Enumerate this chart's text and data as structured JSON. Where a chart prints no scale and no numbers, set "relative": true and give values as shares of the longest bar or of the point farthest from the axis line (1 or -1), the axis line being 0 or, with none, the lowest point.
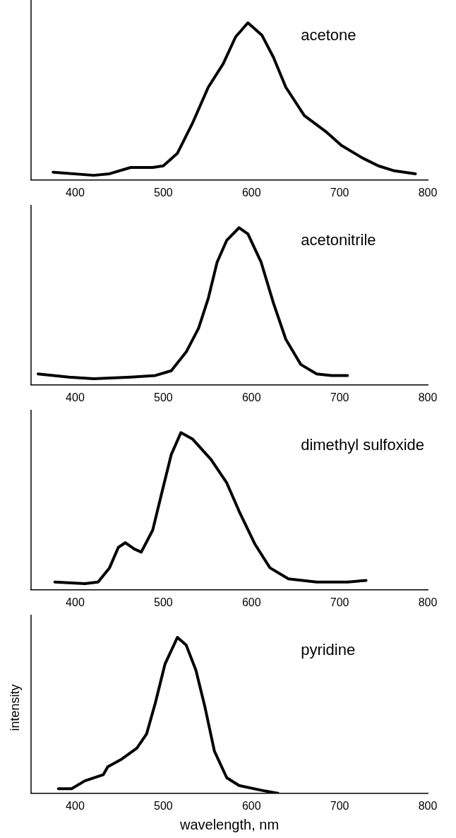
{
  "chart_data": [
    {
      "type": "line",
      "relative": true,
      "xlim": [
        350,
        800
      ],
      "xticks": [
        400,
        500,
        600,
        700,
        800
      ],
      "annotations": [
        "acetone"
      ],
      "marker": "none",
      "tick_labels": "x",
      "grid": false,
      "legend": false,
      "series": [
        {
          "color": "#000000",
          "x": [
            375,
            421,
            439,
            463,
            488,
            500,
            516,
            533,
            551,
            568,
            582,
            596,
            612,
            625,
            639,
            660,
            684,
            702,
            726,
            744,
            761,
            786
          ],
          "values": [
            0.05,
            0.03,
            0.04,
            0.08,
            0.08,
            0.09,
            0.17,
            0.36,
            0.59,
            0.74,
            0.91,
            1.0,
            0.92,
            0.78,
            0.59,
            0.41,
            0.31,
            0.22,
            0.14,
            0.09,
            0.06,
            0.04
          ]
        }
      ]
    },
    {
      "type": "line",
      "relative": true,
      "xlim": [
        350,
        800
      ],
      "xticks": [
        400,
        500,
        600,
        700,
        800
      ],
      "annotations": [
        "acetonitrile"
      ],
      "marker": "none",
      "tick_labels": "x",
      "grid": false,
      "legend": false,
      "series": [
        {
          "color": "#000000",
          "x": [
            358,
            393,
            421,
            463,
            491,
            509,
            526,
            540,
            551,
            561,
            572,
            586,
            596,
            611,
            625,
            639,
            656,
            674,
            691,
            709
          ],
          "values": [
            0.07,
            0.05,
            0.04,
            0.05,
            0.06,
            0.09,
            0.21,
            0.36,
            0.55,
            0.78,
            0.92,
            1.0,
            0.96,
            0.78,
            0.52,
            0.29,
            0.13,
            0.07,
            0.06,
            0.06
          ]
        }
      ]
    },
    {
      "type": "line",
      "relative": true,
      "xlim": [
        350,
        800
      ],
      "xticks": [
        400,
        500,
        600,
        700,
        800
      ],
      "annotations": [
        "dimethyl sulfoxide"
      ],
      "marker": "none",
      "tick_labels": "x",
      "grid": false,
      "legend": false,
      "series": [
        {
          "color": "#000000",
          "x": [
            377,
            411,
            426,
            439,
            449,
            457,
            467,
            475,
            488,
            498,
            509,
            520,
            533,
            554,
            572,
            586,
            604,
            621,
            642,
            674,
            709,
            730
          ],
          "values": [
            0.05,
            0.04,
            0.05,
            0.14,
            0.27,
            0.3,
            0.26,
            0.24,
            0.38,
            0.61,
            0.86,
            1.0,
            0.96,
            0.83,
            0.68,
            0.5,
            0.29,
            0.14,
            0.07,
            0.05,
            0.05,
            0.06
          ]
        }
      ]
    },
    {
      "type": "line",
      "relative": true,
      "xlim": [
        350,
        800
      ],
      "xticks": [
        400,
        500,
        600,
        700,
        800
      ],
      "xlabel": "wavelength, nm",
      "ylabel": "intensity",
      "annotations": [
        "pyridine"
      ],
      "marker": "none",
      "tick_labels": "x",
      "grid": false,
      "legend": false,
      "series": [
        {
          "color": "#000000",
          "x": [
            381,
            396,
            411,
            432,
            437,
            453,
            470,
            481,
            491,
            502,
            516,
            526,
            537,
            547,
            558,
            572,
            586,
            611,
            630
          ],
          "values": [
            0.03,
            0.03,
            0.08,
            0.12,
            0.17,
            0.22,
            0.29,
            0.38,
            0.58,
            0.83,
            1.0,
            0.95,
            0.79,
            0.56,
            0.27,
            0.1,
            0.05,
            0.02,
            0.0
          ]
        }
      ]
    }
  ]
}
